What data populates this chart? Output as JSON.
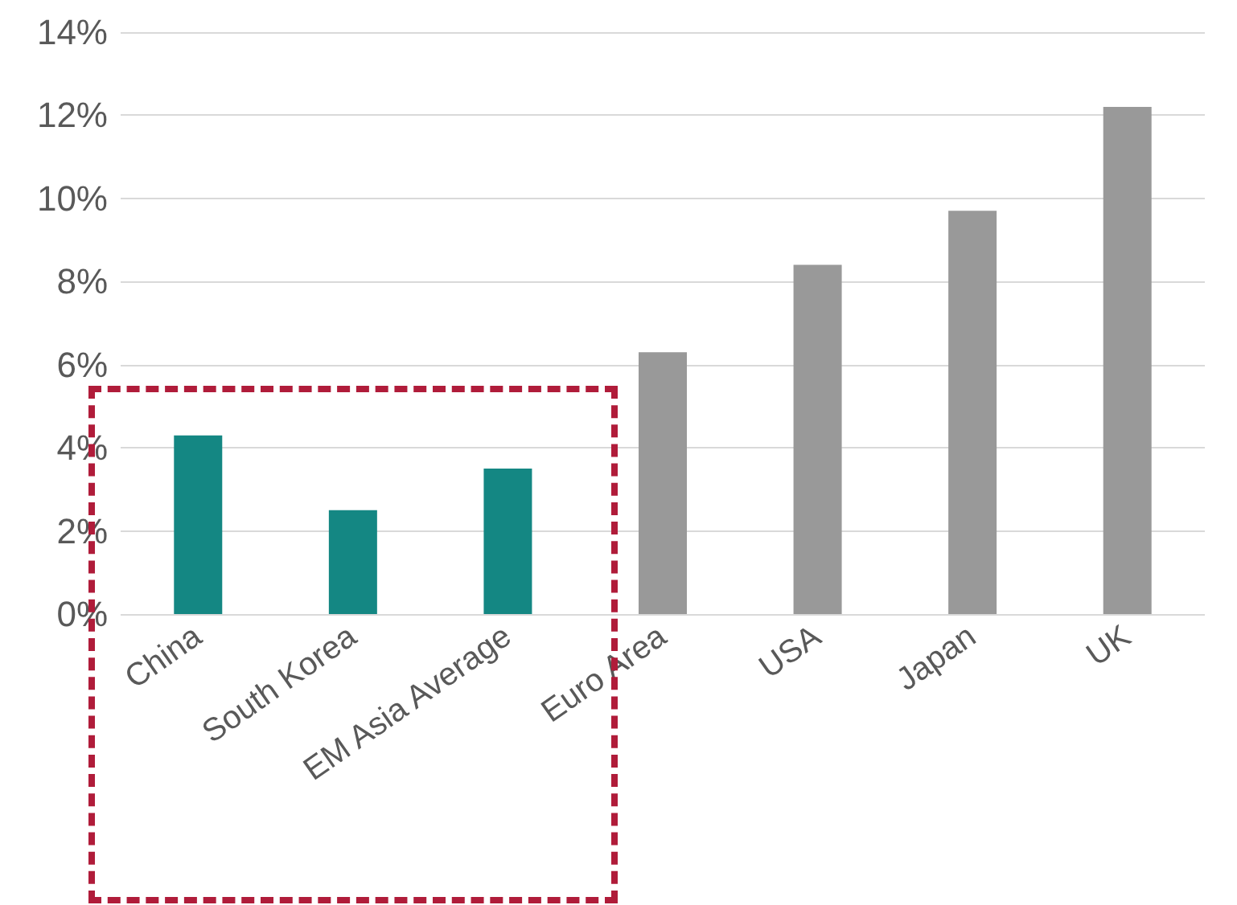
{
  "chart_data": {
    "type": "bar",
    "categories": [
      "China",
      "South Korea",
      "EM Asia Average",
      "Euro Area",
      "USA",
      "Japan",
      "UK"
    ],
    "values": [
      4.3,
      2.5,
      3.5,
      6.3,
      8.4,
      9.7,
      12.2
    ],
    "colors": [
      "#148783",
      "#148783",
      "#148783",
      "#999999",
      "#999999",
      "#999999",
      "#999999"
    ],
    "ylim": [
      0,
      14
    ],
    "yticks": [
      {
        "value": 0,
        "label": "0%"
      },
      {
        "value": 2,
        "label": "2%"
      },
      {
        "value": 4,
        "label": "4%"
      },
      {
        "value": 6,
        "label": "6%"
      },
      {
        "value": 8,
        "label": "8%"
      },
      {
        "value": 10,
        "label": "10%"
      },
      {
        "value": 12,
        "label": "12%"
      },
      {
        "value": 14,
        "label": "14%"
      }
    ],
    "grid": "y"
  }
}
